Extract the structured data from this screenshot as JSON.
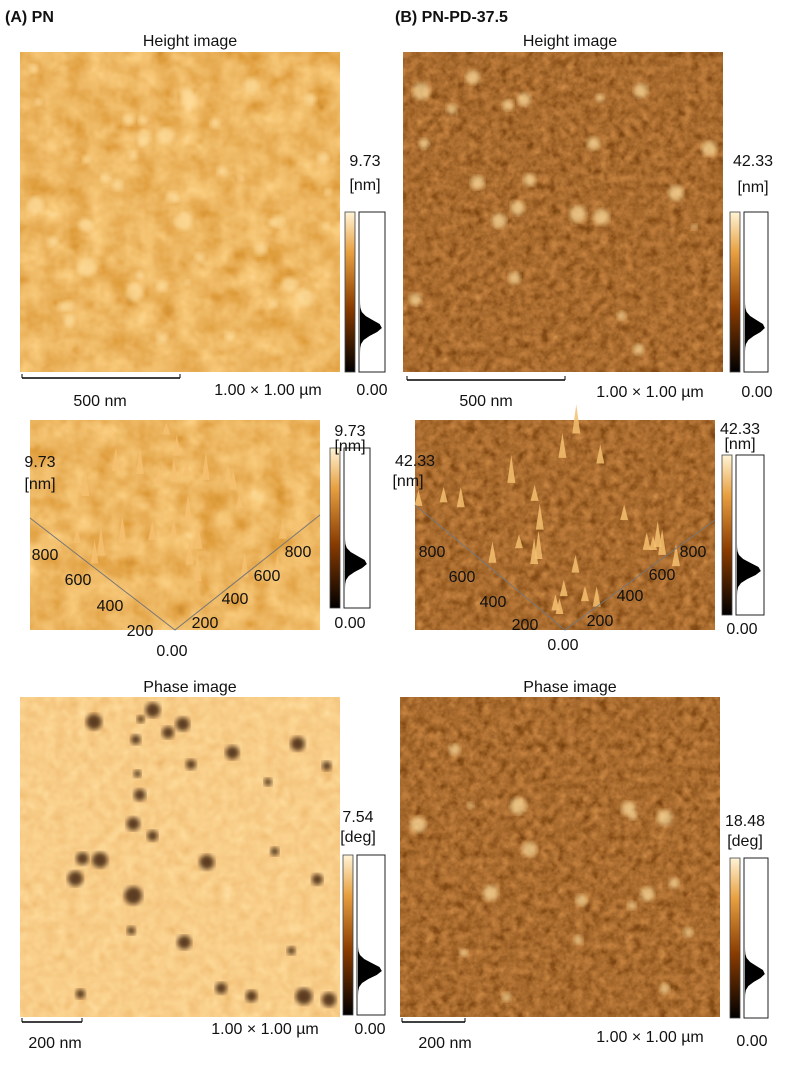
{
  "panels": [
    {
      "label": "(A) PN",
      "height": {
        "title": "Height image",
        "scale_max": "9.73",
        "unit": "[nm]",
        "scale_min": "0.00",
        "scale_bar": "500 nm",
        "size": "1.00 × 1.00 µm"
      },
      "view3d": {
        "scale_max": "9.73",
        "unit": "[nm]",
        "scale_min": "0.00",
        "z_max": "9.73",
        "z_unit": "[nm]",
        "left_ticks": [
          "800",
          "600",
          "400",
          "200"
        ],
        "origin": "0.00",
        "right_ticks": [
          "200",
          "400",
          "600",
          "800"
        ]
      },
      "phase": {
        "title": "Phase image",
        "scale_max": "7.54",
        "unit": "[deg]",
        "scale_min": "0.00",
        "scale_bar": "200 nm",
        "size": "1.00 × 1.00 µm"
      }
    },
    {
      "label": "(B) PN-PD-37.5",
      "height": {
        "title": "Height image",
        "scale_max": "42.33",
        "unit": "[nm]",
        "scale_min": "0.00",
        "scale_bar": "500 nm",
        "size": "1.00 × 1.00 µm"
      },
      "view3d": {
        "scale_max": "42.33",
        "unit": "[nm]",
        "scale_min": "0.00",
        "z_max": "42.33",
        "z_unit": "[nm]",
        "left_ticks": [
          "800",
          "600",
          "400",
          "200"
        ],
        "origin": "0.00",
        "right_ticks": [
          "200",
          "400",
          "600",
          "800"
        ]
      },
      "phase": {
        "title": "Phase image",
        "scale_max": "18.48",
        "unit": "[deg]",
        "scale_min": "0.00",
        "scale_bar": "200 nm",
        "size": "1.00 × 1.00 µm"
      }
    }
  ]
}
